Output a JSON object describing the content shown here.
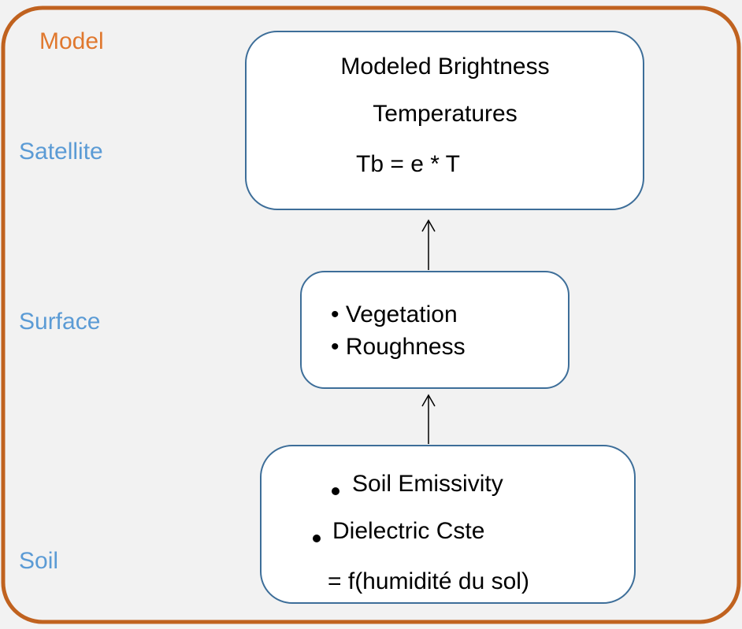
{
  "frame": {
    "title": "Model"
  },
  "levels": [
    "Satellite",
    "Surface",
    "Soil"
  ],
  "nodes": [
    {
      "lines": [
        "Modeled Brightness",
        "Temperatures",
        "Tb = e * T"
      ]
    },
    {
      "lines": [
        "• Vegetation",
        "• Roughness"
      ]
    },
    {
      "lines": [
        "Soil Emissivity",
        "Dielectric Cste",
        "= f(humidité du sol)"
      ]
    }
  ]
}
